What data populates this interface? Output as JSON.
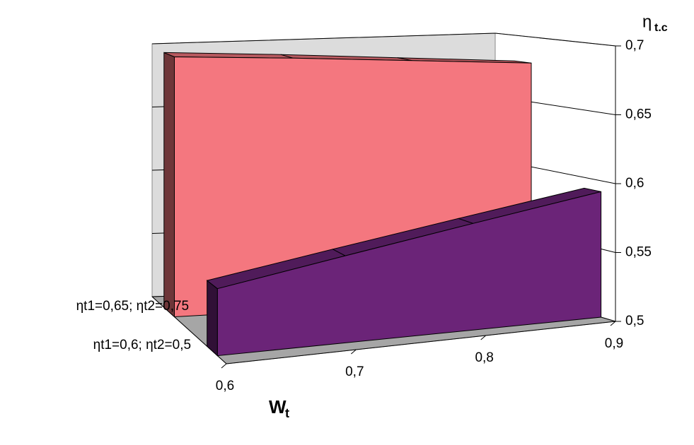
{
  "chart_data": {
    "type": "area3d",
    "x_label": "W",
    "x_label_sub": "t",
    "y_label": "η",
    "y_label_sub": "t.c",
    "x": [
      0.6,
      0.7,
      0.8,
      0.9
    ],
    "xlim": [
      0.6,
      0.9
    ],
    "xticks": [
      {
        "value": 0.6,
        "label": "0,6"
      },
      {
        "value": 0.7,
        "label": "0,7"
      },
      {
        "value": 0.8,
        "label": "0,8"
      },
      {
        "value": 0.9,
        "label": "0,9"
      }
    ],
    "ylim": [
      0.5,
      0.7
    ],
    "yticks": [
      {
        "value": 0.5,
        "label": "0,5"
      },
      {
        "value": 0.55,
        "label": "0,55"
      },
      {
        "value": 0.6,
        "label": "0,6"
      },
      {
        "value": 0.65,
        "label": "0,65"
      },
      {
        "value": 0.7,
        "label": "0,7"
      }
    ],
    "grid": true,
    "series": [
      {
        "name": "ηt1=0,6; ηt2=0,5",
        "color": "#6b2478",
        "values": [
          0.547,
          0.562,
          0.577,
          0.592
        ]
      },
      {
        "name": "ηt1=0,65; ηt2=0,75",
        "color": "#f4777f",
        "values": [
          0.697,
          0.692,
          0.686,
          0.68
        ]
      }
    ]
  }
}
